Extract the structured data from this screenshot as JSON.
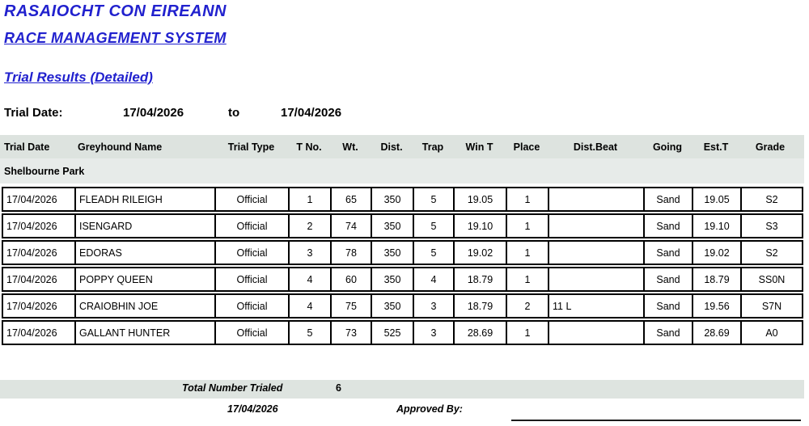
{
  "titles": {
    "org": "RASAIOCHT CON EIREANN",
    "system": "RACE MANAGEMENT SYSTEM",
    "report": "Trial Results (Detailed)"
  },
  "filter": {
    "label": "Trial Date:",
    "from_date": "17/04/2026",
    "to_word": "to",
    "to_date": "17/04/2026"
  },
  "table": {
    "columns": [
      "Trial Date",
      "Greyhound Name",
      "Trial Type",
      "T No.",
      "Wt.",
      "Dist.",
      "Trap",
      "Win T",
      "Place",
      "Dist.Beat",
      "Going",
      "Est.T",
      "Grade"
    ],
    "group": "Shelbourne Park",
    "rows": [
      [
        "17/04/2026",
        "FLEADH RILEIGH",
        "Official",
        "1",
        "65",
        "350",
        "5",
        "19.05",
        "1",
        "",
        "Sand",
        "19.05",
        "S2"
      ],
      [
        "17/04/2026",
        "ISENGARD",
        "Official",
        "2",
        "74",
        "350",
        "5",
        "19.10",
        "1",
        "",
        "Sand",
        "19.10",
        "S3"
      ],
      [
        "17/04/2026",
        "EDORAS",
        "Official",
        "3",
        "78",
        "350",
        "5",
        "19.02",
        "1",
        "",
        "Sand",
        "19.02",
        "S2"
      ],
      [
        "17/04/2026",
        "POPPY QUEEN",
        "Official",
        "4",
        "60",
        "350",
        "4",
        "18.79",
        "1",
        "",
        "Sand",
        "18.79",
        "SS0N"
      ],
      [
        "17/04/2026",
        "CRAIOBHIN JOE",
        "Official",
        "4",
        "75",
        "350",
        "3",
        "18.79",
        "2",
        "11 L",
        "Sand",
        "19.56",
        "S7N"
      ],
      [
        "17/04/2026",
        "GALLANT HUNTER",
        "Official",
        "5",
        "73",
        "525",
        "3",
        "28.69",
        "1",
        "",
        "Sand",
        "28.69",
        "A0"
      ]
    ]
  },
  "footer": {
    "total_label": "Total Number Trialed",
    "total_value": "6",
    "date": "17/04/2026",
    "approved_label": "Approved By:"
  },
  "colors": {
    "title_blue": "#2121ce",
    "header_band": "#dde3df",
    "group_band": "#e7ebe9",
    "footer_band": "#dee4e0"
  }
}
